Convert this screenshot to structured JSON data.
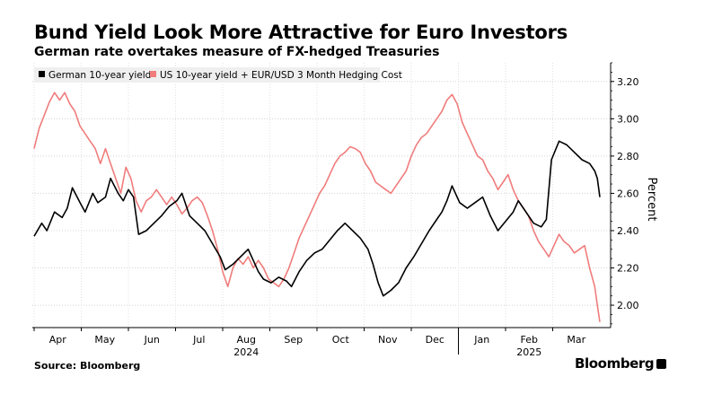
{
  "header": {
    "title": "Bund Yield Look More Attractive for Euro Investors",
    "subtitle": "German rate overtakes measure of FX-hedged Treasuries"
  },
  "footer": {
    "source": "Source: Bloomberg",
    "brand": "Bloomberg"
  },
  "chart_data": {
    "type": "line",
    "ylabel": "Percent",
    "ylim": [
      1.88,
      3.3
    ],
    "yticks": [
      "2.00",
      "2.20",
      "2.40",
      "2.60",
      "2.80",
      "3.00",
      "3.20"
    ],
    "xmonths": [
      "Apr",
      "May",
      "Jun",
      "Jul",
      "Aug",
      "Sep",
      "Oct",
      "Nov",
      "Dec",
      "Jan",
      "Feb",
      "Mar"
    ],
    "xyears": [
      "2024",
      "2025"
    ],
    "grid": true,
    "legend_position": "top-left",
    "colors": {
      "german": "#000000",
      "us": "#f07c7c"
    },
    "series": [
      {
        "name": "German 10-year yield",
        "points": [
          [
            0,
            2.37
          ],
          [
            3,
            2.44
          ],
          [
            5,
            2.4
          ],
          [
            8,
            2.5
          ],
          [
            11,
            2.47
          ],
          [
            13,
            2.52
          ],
          [
            15,
            2.63
          ],
          [
            18,
            2.55
          ],
          [
            20,
            2.5
          ],
          [
            23,
            2.6
          ],
          [
            25,
            2.55
          ],
          [
            28,
            2.58
          ],
          [
            30,
            2.68
          ],
          [
            33,
            2.6
          ],
          [
            35,
            2.56
          ],
          [
            37,
            2.62
          ],
          [
            39,
            2.58
          ],
          [
            41,
            2.38
          ],
          [
            44,
            2.4
          ],
          [
            47,
            2.44
          ],
          [
            50,
            2.48
          ],
          [
            53,
            2.53
          ],
          [
            56,
            2.56
          ],
          [
            58,
            2.6
          ],
          [
            61,
            2.48
          ],
          [
            64,
            2.44
          ],
          [
            67,
            2.4
          ],
          [
            70,
            2.33
          ],
          [
            73,
            2.26
          ],
          [
            75,
            2.19
          ],
          [
            78,
            2.22
          ],
          [
            81,
            2.26
          ],
          [
            84,
            2.3
          ],
          [
            86,
            2.24
          ],
          [
            88,
            2.18
          ],
          [
            90,
            2.14
          ],
          [
            93,
            2.12
          ],
          [
            96,
            2.15
          ],
          [
            99,
            2.13
          ],
          [
            101,
            2.1
          ],
          [
            104,
            2.18
          ],
          [
            107,
            2.24
          ],
          [
            110,
            2.28
          ],
          [
            113,
            2.3
          ],
          [
            116,
            2.35
          ],
          [
            119,
            2.4
          ],
          [
            122,
            2.44
          ],
          [
            125,
            2.4
          ],
          [
            128,
            2.36
          ],
          [
            131,
            2.3
          ],
          [
            133,
            2.22
          ],
          [
            135,
            2.12
          ],
          [
            137,
            2.05
          ],
          [
            140,
            2.08
          ],
          [
            143,
            2.12
          ],
          [
            146,
            2.2
          ],
          [
            149,
            2.26
          ],
          [
            152,
            2.33
          ],
          [
            155,
            2.4
          ],
          [
            158,
            2.46
          ],
          [
            160,
            2.5
          ],
          [
            162,
            2.56
          ],
          [
            164,
            2.64
          ],
          [
            167,
            2.55
          ],
          [
            170,
            2.52
          ],
          [
            173,
            2.55
          ],
          [
            176,
            2.58
          ],
          [
            179,
            2.48
          ],
          [
            182,
            2.4
          ],
          [
            185,
            2.45
          ],
          [
            188,
            2.5
          ],
          [
            190,
            2.56
          ],
          [
            193,
            2.5
          ],
          [
            196,
            2.44
          ],
          [
            199,
            2.42
          ],
          [
            201,
            2.46
          ],
          [
            203,
            2.78
          ],
          [
            206,
            2.88
          ],
          [
            209,
            2.86
          ],
          [
            212,
            2.82
          ],
          [
            215,
            2.78
          ],
          [
            218,
            2.76
          ],
          [
            220,
            2.72
          ],
          [
            221,
            2.68
          ],
          [
            222,
            2.58
          ]
        ]
      },
      {
        "name": "US 10-year yield + EUR/USD 3 Month Hedging Cost",
        "points": [
          [
            0,
            2.84
          ],
          [
            2,
            2.95
          ],
          [
            4,
            3.02
          ],
          [
            6,
            3.09
          ],
          [
            8,
            3.14
          ],
          [
            10,
            3.1
          ],
          [
            12,
            3.14
          ],
          [
            14,
            3.08
          ],
          [
            16,
            3.04
          ],
          [
            18,
            2.96
          ],
          [
            20,
            2.92
          ],
          [
            22,
            2.88
          ],
          [
            24,
            2.84
          ],
          [
            26,
            2.76
          ],
          [
            28,
            2.84
          ],
          [
            30,
            2.76
          ],
          [
            32,
            2.68
          ],
          [
            34,
            2.6
          ],
          [
            36,
            2.74
          ],
          [
            38,
            2.68
          ],
          [
            40,
            2.56
          ],
          [
            42,
            2.5
          ],
          [
            44,
            2.56
          ],
          [
            46,
            2.58
          ],
          [
            48,
            2.62
          ],
          [
            50,
            2.58
          ],
          [
            52,
            2.54
          ],
          [
            54,
            2.58
          ],
          [
            56,
            2.54
          ],
          [
            58,
            2.49
          ],
          [
            60,
            2.52
          ],
          [
            62,
            2.56
          ],
          [
            64,
            2.58
          ],
          [
            66,
            2.55
          ],
          [
            68,
            2.48
          ],
          [
            70,
            2.4
          ],
          [
            72,
            2.3
          ],
          [
            74,
            2.18
          ],
          [
            76,
            2.1
          ],
          [
            78,
            2.2
          ],
          [
            80,
            2.25
          ],
          [
            82,
            2.22
          ],
          [
            84,
            2.26
          ],
          [
            86,
            2.2
          ],
          [
            88,
            2.24
          ],
          [
            90,
            2.2
          ],
          [
            92,
            2.14
          ],
          [
            94,
            2.12
          ],
          [
            96,
            2.1
          ],
          [
            98,
            2.14
          ],
          [
            100,
            2.2
          ],
          [
            102,
            2.28
          ],
          [
            104,
            2.36
          ],
          [
            106,
            2.42
          ],
          [
            108,
            2.48
          ],
          [
            110,
            2.54
          ],
          [
            112,
            2.6
          ],
          [
            114,
            2.64
          ],
          [
            116,
            2.7
          ],
          [
            118,
            2.76
          ],
          [
            120,
            2.8
          ],
          [
            122,
            2.82
          ],
          [
            124,
            2.85
          ],
          [
            126,
            2.84
          ],
          [
            128,
            2.82
          ],
          [
            130,
            2.76
          ],
          [
            132,
            2.72
          ],
          [
            134,
            2.66
          ],
          [
            136,
            2.64
          ],
          [
            138,
            2.62
          ],
          [
            140,
            2.6
          ],
          [
            142,
            2.64
          ],
          [
            144,
            2.68
          ],
          [
            146,
            2.72
          ],
          [
            148,
            2.8
          ],
          [
            150,
            2.86
          ],
          [
            152,
            2.9
          ],
          [
            154,
            2.92
          ],
          [
            156,
            2.96
          ],
          [
            158,
            3.0
          ],
          [
            160,
            3.04
          ],
          [
            162,
            3.1
          ],
          [
            164,
            3.13
          ],
          [
            166,
            3.08
          ],
          [
            168,
            2.98
          ],
          [
            170,
            2.92
          ],
          [
            172,
            2.86
          ],
          [
            174,
            2.8
          ],
          [
            176,
            2.78
          ],
          [
            178,
            2.72
          ],
          [
            180,
            2.68
          ],
          [
            182,
            2.62
          ],
          [
            184,
            2.66
          ],
          [
            186,
            2.7
          ],
          [
            188,
            2.62
          ],
          [
            190,
            2.56
          ],
          [
            192,
            2.52
          ],
          [
            194,
            2.48
          ],
          [
            196,
            2.4
          ],
          [
            198,
            2.34
          ],
          [
            200,
            2.3
          ],
          [
            202,
            2.26
          ],
          [
            204,
            2.32
          ],
          [
            206,
            2.38
          ],
          [
            208,
            2.34
          ],
          [
            210,
            2.32
          ],
          [
            212,
            2.28
          ],
          [
            214,
            2.3
          ],
          [
            216,
            2.32
          ],
          [
            218,
            2.2
          ],
          [
            220,
            2.1
          ],
          [
            221,
            2.0
          ],
          [
            222,
            1.91
          ]
        ]
      }
    ]
  }
}
